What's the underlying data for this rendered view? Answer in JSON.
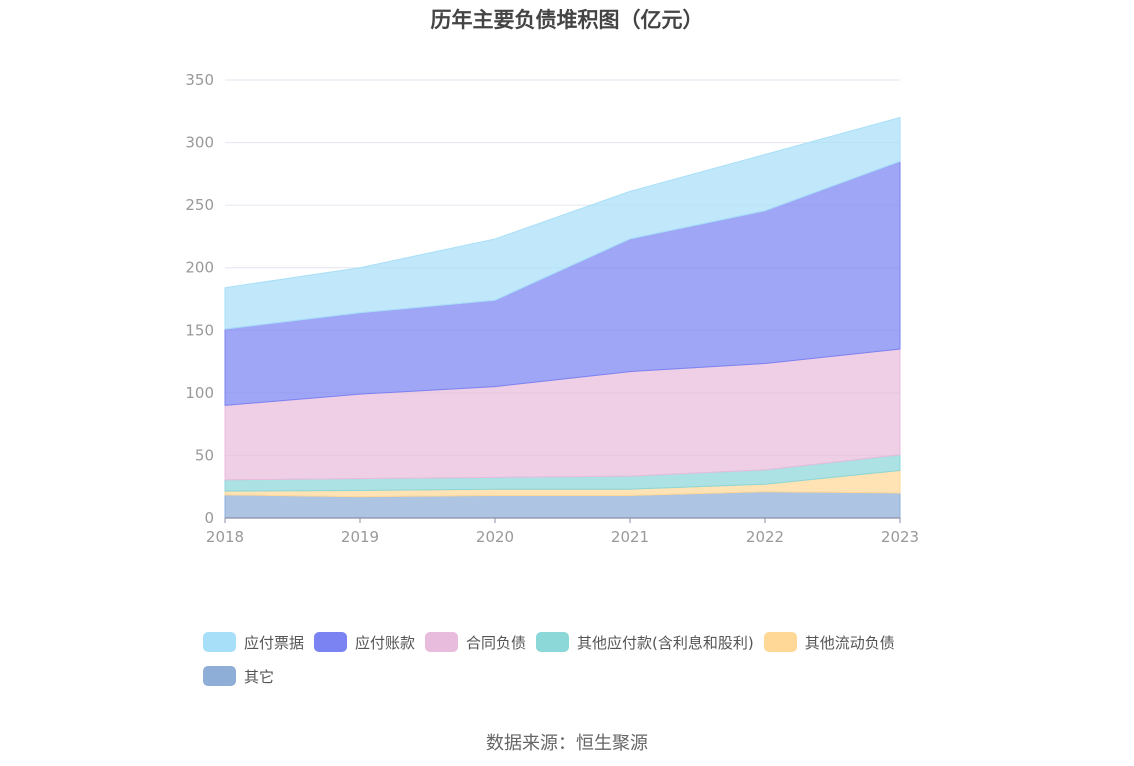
{
  "chart_data": {
    "type": "area",
    "stacked": true,
    "title": "历年主要负债堆积图（亿元）",
    "categories": [
      "2018",
      "2019",
      "2020",
      "2021",
      "2022",
      "2023"
    ],
    "ylim": [
      0,
      350
    ],
    "yticks": [
      0,
      50,
      100,
      150,
      200,
      250,
      300,
      350
    ],
    "grid": true,
    "legend_position": "bottom",
    "series": [
      {
        "name": "其它",
        "color": "#8eaed8",
        "values": [
          18.5,
          17,
          18,
          18,
          21,
          20
        ]
      },
      {
        "name": "其他流动负债",
        "color": "#ffd898",
        "values": [
          3,
          5,
          5,
          5,
          6,
          18
        ]
      },
      {
        "name": "其他应付款(含利息和股利)",
        "color": "#8cd7d8",
        "values": [
          9,
          9.5,
          9.5,
          10.5,
          11.5,
          12.5
        ]
      },
      {
        "name": "合同负债",
        "color": "#e8bcdc",
        "values": [
          59.5,
          67.5,
          72.5,
          83.5,
          85,
          84.5
        ]
      },
      {
        "name": "应付账款",
        "color": "#7b83f2",
        "values": [
          61,
          65,
          69,
          106,
          122,
          150
        ]
      },
      {
        "name": "应付票据",
        "color": "#a8dff8",
        "values": [
          33,
          36,
          49,
          38,
          45,
          35
        ]
      }
    ],
    "legend_order": [
      "应付票据",
      "应付账款",
      "合同负债",
      "其他应付款(含利息和股利)",
      "其他流动负债",
      "其它"
    ]
  },
  "source": "数据来源：恒生聚源"
}
